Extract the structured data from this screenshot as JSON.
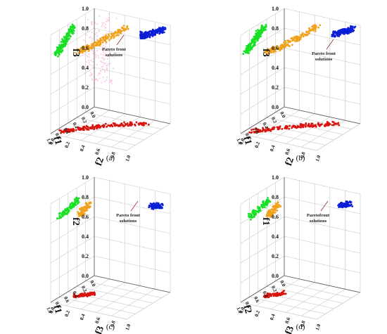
{
  "figure": {
    "caption_note": "",
    "colors": {
      "blue": "#0a1fd6",
      "green": "#18e024",
      "orange": "#f1a21b",
      "red": "#d8140e",
      "pink": "#f4a3d4",
      "grid": "#c9c9c9",
      "annotation": "#9a2a2a"
    }
  },
  "chart_data": [
    {
      "type": "scatter",
      "panel_label": "(a)",
      "annotation": "Pareto front solutions",
      "xlabel": "f1",
      "ylabel": "f2",
      "zlabel": "f3",
      "ticks": [
        "0.0",
        "0.2",
        "0.4",
        "0.6",
        "0.8",
        "1.0"
      ],
      "xlim": [
        0,
        1
      ],
      "ylim": [
        0,
        1
      ],
      "zlim": [
        0,
        1
      ],
      "grid": true,
      "series": [
        {
          "color": "blue",
          "points": [
            [
              0.02,
              0.92,
              0.95
            ],
            [
              0.05,
              0.85,
              0.92
            ],
            [
              0.08,
              0.78,
              0.9
            ],
            [
              0.12,
              0.72,
              0.88
            ],
            [
              0.15,
              0.7,
              0.89
            ]
          ]
        },
        {
          "color": "green",
          "points": [
            [
              0.55,
              0.05,
              0.98
            ],
            [
              0.65,
              0.05,
              0.93
            ],
            [
              0.75,
              0.05,
              0.88
            ],
            [
              0.85,
              0.05,
              0.84
            ],
            [
              0.95,
              0.05,
              0.8
            ]
          ]
        },
        {
          "color": "orange",
          "points": [
            [
              0.2,
              0.55,
              0.97
            ],
            [
              0.35,
              0.45,
              0.9
            ],
            [
              0.5,
              0.35,
              0.85
            ],
            [
              0.62,
              0.25,
              0.8
            ],
            [
              0.7,
              0.18,
              0.78
            ]
          ]
        },
        {
          "color": "red",
          "points": [
            [
              0.15,
              0.8,
              0.0
            ],
            [
              0.35,
              0.55,
              0.0
            ],
            [
              0.55,
              0.35,
              0.0
            ],
            [
              0.75,
              0.18,
              0.0
            ],
            [
              0.9,
              0.08,
              0.0
            ]
          ]
        }
      ]
    },
    {
      "type": "scatter",
      "panel_label": "(b)",
      "annotation": "Pareto front solutions",
      "xlabel": "f1",
      "ylabel": "f2",
      "zlabel": "f3",
      "ticks": [
        "0.0",
        "0.2",
        "0.4",
        "0.6",
        "0.8",
        "1.0"
      ],
      "xlim": [
        0,
        1
      ],
      "ylim": [
        0,
        1
      ],
      "zlim": [
        0,
        1
      ],
      "grid": true,
      "series": [
        {
          "color": "blue",
          "points": [
            [
              0.02,
              0.92,
              0.96
            ],
            [
              0.05,
              0.85,
              0.93
            ],
            [
              0.08,
              0.78,
              0.91
            ],
            [
              0.12,
              0.72,
              0.89
            ]
          ]
        },
        {
          "color": "green",
          "points": [
            [
              0.55,
              0.05,
              0.98
            ],
            [
              0.7,
              0.05,
              0.92
            ],
            [
              0.85,
              0.05,
              0.86
            ],
            [
              0.98,
              0.05,
              0.82
            ]
          ]
        },
        {
          "color": "orange",
          "points": [
            [
              0.2,
              0.55,
              0.97
            ],
            [
              0.38,
              0.42,
              0.88
            ],
            [
              0.55,
              0.3,
              0.82
            ],
            [
              0.72,
              0.18,
              0.78
            ]
          ]
        },
        {
          "color": "red",
          "points": [
            [
              0.15,
              0.8,
              0.0
            ],
            [
              0.4,
              0.52,
              0.0
            ],
            [
              0.65,
              0.28,
              0.0
            ],
            [
              0.9,
              0.08,
              0.0
            ]
          ]
        }
      ]
    },
    {
      "type": "scatter",
      "panel_label": "(c)",
      "annotation": "Pareto front solutions",
      "xlabel": "f1",
      "ylabel": "f3",
      "zlabel": "f2",
      "ticks": [
        "0.0",
        "0.2",
        "0.4",
        "0.6",
        "0.8",
        "1.0"
      ],
      "xlim": [
        0,
        1
      ],
      "ylim": [
        0,
        1
      ],
      "zlim": [
        0,
        1
      ],
      "grid": true,
      "series": [
        {
          "color": "blue",
          "points": [
            [
              0.05,
              0.9,
              0.88
            ],
            [
              0.08,
              0.85,
              0.87
            ],
            [
              0.1,
              0.8,
              0.88
            ]
          ]
        },
        {
          "color": "green",
          "points": [
            [
              0.6,
              0.15,
              0.97
            ],
            [
              0.75,
              0.1,
              0.9
            ],
            [
              0.9,
              0.05,
              0.84
            ]
          ]
        },
        {
          "color": "orange",
          "points": [
            [
              0.55,
              0.25,
              0.92
            ],
            [
              0.6,
              0.2,
              0.86
            ],
            [
              0.65,
              0.18,
              0.82
            ]
          ]
        },
        {
          "color": "red",
          "points": [
            [
              0.5,
              0.3,
              0.0
            ],
            [
              0.6,
              0.22,
              0.0
            ],
            [
              0.7,
              0.15,
              0.0
            ]
          ]
        }
      ]
    },
    {
      "type": "scatter",
      "panel_label": "(d)",
      "annotation": "Paretofront solutions",
      "xlabel": "f2",
      "ylabel": "f3",
      "zlabel": "f1",
      "ticks": [
        "0.0",
        "0.2",
        "0.4",
        "0.6",
        "0.8",
        "1.0"
      ],
      "xlim": [
        0,
        1
      ],
      "ylim": [
        0,
        1
      ],
      "zlim": [
        0,
        1
      ],
      "grid": true,
      "series": [
        {
          "color": "blue",
          "points": [
            [
              0.05,
              0.9,
              0.9
            ],
            [
              0.08,
              0.85,
              0.89
            ],
            [
              0.1,
              0.8,
              0.88
            ]
          ]
        },
        {
          "color": "green",
          "points": [
            [
              0.6,
              0.15,
              0.96
            ],
            [
              0.75,
              0.1,
              0.9
            ],
            [
              0.9,
              0.05,
              0.84
            ]
          ]
        },
        {
          "color": "orange",
          "points": [
            [
              0.58,
              0.25,
              0.92
            ],
            [
              0.62,
              0.2,
              0.86
            ],
            [
              0.66,
              0.18,
              0.82
            ]
          ]
        },
        {
          "color": "red",
          "points": [
            [
              0.5,
              0.3,
              0.0
            ],
            [
              0.6,
              0.22,
              0.0
            ],
            [
              0.7,
              0.15,
              0.0
            ]
          ]
        }
      ]
    }
  ]
}
